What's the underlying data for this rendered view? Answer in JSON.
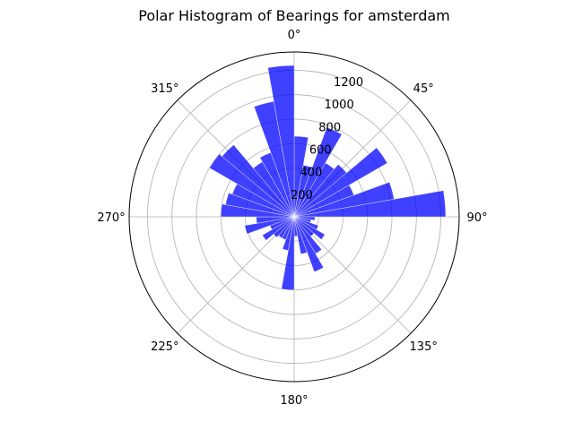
{
  "chart_data": {
    "type": "bar",
    "projection": "polar",
    "title": "Polar Histogram of Bearings for amsterdam",
    "theta_zero_location": "N",
    "theta_direction": "clockwise",
    "bin_width_deg": 10,
    "bins_start_deg": [
      0,
      10,
      20,
      30,
      40,
      50,
      60,
      70,
      80,
      90,
      100,
      110,
      120,
      130,
      140,
      150,
      160,
      170,
      180,
      190,
      200,
      210,
      220,
      230,
      240,
      250,
      260,
      270,
      280,
      290,
      300,
      310,
      320,
      330,
      340,
      350
    ],
    "values": [
      660,
      430,
      780,
      510,
      560,
      880,
      520,
      830,
      1240,
      170,
      140,
      210,
      290,
      210,
      350,
      480,
      310,
      160,
      600,
      280,
      200,
      200,
      220,
      300,
      210,
      410,
      310,
      600,
      570,
      540,
      800,
      770,
      520,
      560,
      960,
      1240
    ],
    "bar_color": "#0000ff",
    "bar_alpha": 0.75,
    "rlim": [
      0,
      1350
    ],
    "radial_ticks": [
      200,
      400,
      600,
      800,
      1000,
      1200
    ],
    "radial_tick_labels": [
      "200",
      "400",
      "600",
      "800",
      "1000",
      "1200"
    ],
    "angular_ticks": [
      0,
      45,
      90,
      135,
      180,
      225,
      270,
      315
    ],
    "angular_tick_labels": [
      "0°",
      "45°",
      "90°",
      "135°",
      "180°",
      "225°",
      "270°",
      "315°"
    ],
    "grid": true
  }
}
